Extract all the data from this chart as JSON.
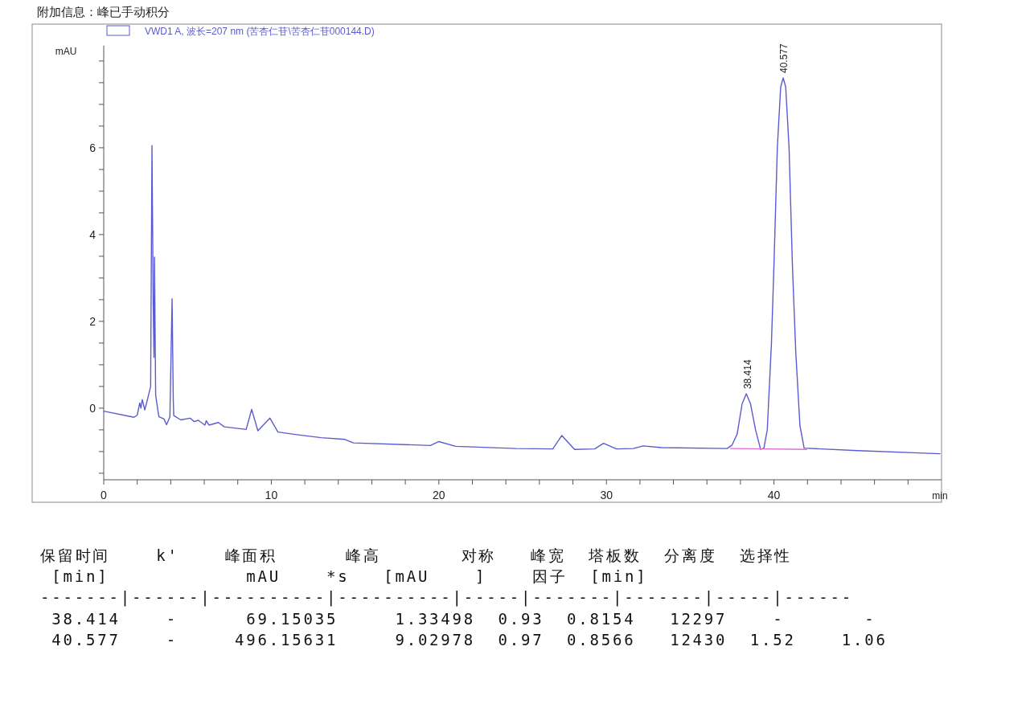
{
  "chart_data": {
    "type": "line",
    "xlabel": "min",
    "ylabel": "mAU",
    "legend": "top",
    "xlim": [
      0,
      50
    ],
    "ylim": [
      -1.65,
      8.3
    ],
    "xticks": [
      0,
      {
        "value": 2,
        "label": null
      },
      {
        "value": 4,
        "label": null
      },
      {
        "value": 6,
        "label": null
      },
      {
        "value": 8,
        "label": null
      },
      10,
      {
        "value": 12,
        "label": null
      },
      {
        "value": 14,
        "label": null
      },
      {
        "value": 16,
        "label": null
      },
      {
        "value": 18,
        "label": null
      },
      20,
      {
        "value": 22,
        "label": null
      },
      {
        "value": 24,
        "label": null
      },
      {
        "value": 26,
        "label": null
      },
      {
        "value": 28,
        "label": null
      },
      30,
      {
        "value": 32,
        "label": null
      },
      {
        "value": 34,
        "label": null
      },
      {
        "value": 36,
        "label": null
      },
      {
        "value": 38,
        "label": null
      },
      40,
      {
        "value": 42,
        "label": null
      },
      {
        "value": 44,
        "label": null
      },
      {
        "value": 46,
        "label": null
      },
      {
        "value": 48,
        "label": null
      }
    ],
    "yticks": [
      {
        "value": -1.5,
        "label": null
      },
      {
        "value": -1,
        "label": null
      },
      {
        "value": -0.5,
        "label": null
      },
      0,
      {
        "value": 0.5,
        "label": null
      },
      {
        "value": 1,
        "label": null
      },
      {
        "value": 1.5,
        "label": null
      },
      2,
      {
        "value": 2.5,
        "label": null
      },
      {
        "value": 3,
        "label": null
      },
      {
        "value": 3.5,
        "label": null
      },
      4,
      {
        "value": 4.5,
        "label": null
      },
      {
        "value": 5,
        "label": null
      },
      {
        "value": 5.5,
        "label": null
      },
      6,
      {
        "value": 6.5,
        "label": null
      },
      {
        "value": 7,
        "label": null
      },
      {
        "value": 7.5,
        "label": null
      },
      {
        "value": 8,
        "label": null
      }
    ],
    "series": [
      {
        "name": "VWD1 A, 波长=207 nm (苦杏仁苷\\苦杏仁苷000144.D)",
        "color": "#5b5bd0",
        "x": [
          0,
          1.81,
          2.0,
          2.15,
          2.22,
          2.3,
          2.45,
          2.6,
          2.8,
          2.88,
          2.95,
          3.0,
          3.03,
          3.1,
          3.25,
          3.3,
          3.6,
          3.75,
          3.95,
          4.08,
          4.15,
          4.18,
          4.6,
          5.16,
          5.4,
          5.64,
          6.04,
          6.12,
          6.28,
          6.84,
          7.2,
          8.5,
          8.83,
          9.2,
          9.92,
          10.4,
          11.7,
          12.98,
          14.4,
          14.9,
          19.5,
          20.0,
          21.0,
          24.6,
          26.8,
          27.34,
          28.1,
          29.3,
          29.83,
          30.6,
          31.6,
          32.2,
          33.3,
          37.2,
          37.5,
          37.8,
          38.1,
          38.35,
          38.6,
          38.9,
          39.2,
          39.4,
          39.6,
          39.85,
          40.0,
          40.2,
          40.4,
          40.55,
          40.7,
          40.9,
          41.1,
          41.3,
          41.55,
          41.8,
          45.0,
          49.9
        ],
        "values": [
          -0.07,
          -0.21,
          -0.16,
          0.12,
          0.0,
          0.2,
          -0.04,
          0.18,
          0.5,
          6.05,
          2.5,
          1.17,
          3.48,
          0.3,
          -0.1,
          -0.2,
          -0.25,
          -0.38,
          -0.2,
          2.52,
          0.2,
          -0.17,
          -0.27,
          -0.23,
          -0.31,
          -0.28,
          -0.39,
          -0.29,
          -0.39,
          -0.33,
          -0.43,
          -0.49,
          -0.03,
          -0.52,
          -0.23,
          -0.55,
          -0.62,
          -0.68,
          -0.72,
          -0.8,
          -0.86,
          -0.77,
          -0.88,
          -0.93,
          -0.94,
          -0.63,
          -0.95,
          -0.94,
          -0.81,
          -0.94,
          -0.93,
          -0.87,
          -0.91,
          -0.93,
          -0.85,
          -0.6,
          0.1,
          0.33,
          0.1,
          -0.5,
          -0.95,
          -0.92,
          -0.5,
          1.5,
          3.3,
          6.0,
          7.4,
          7.61,
          7.4,
          6.0,
          3.3,
          1.3,
          -0.4,
          -0.92,
          -0.98,
          -1.05
        ]
      },
      {
        "color": "#e070d0",
        "x": [
          37.4,
          41.95
        ],
        "values": [
          -0.93,
          -0.95
        ]
      }
    ],
    "annotations": [
      "附加信息：峰已手动积分",
      {
        "text": "38.414",
        "x": 38.414,
        "y": 0.33
      },
      {
        "text": "40.577",
        "x": 40.577,
        "y": 7.61
      },
      "保留时间    k'    峰面积      峰高       对称   峰宽  塔板数  分离度  选择性",
      " [min]            mAU    *s   [mAU    ]    因子  [min]",
      "-------|------|----------|----------|-----|-------|-------|-----|------",
      " 38.414    -      69.15035     1.33498  0.93  0.8154   12297    -       -",
      " 40.577    -     496.15631     9.02978  0.97  0.8566   12430  1.52    1.06"
    ]
  }
}
